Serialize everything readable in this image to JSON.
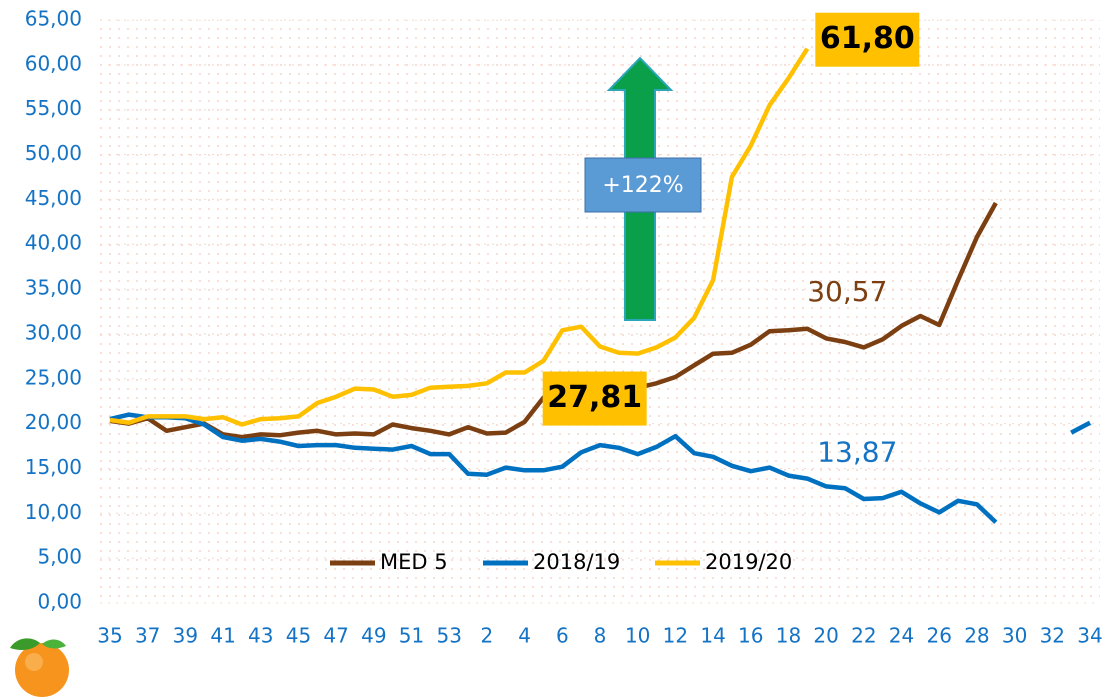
{
  "chart_data": {
    "type": "line",
    "categories": [
      "35",
      null,
      "37",
      null,
      "39",
      null,
      "41",
      null,
      "43",
      null,
      "45",
      null,
      "47",
      null,
      "49",
      null,
      "51",
      null,
      "53",
      null,
      "2",
      null,
      "4",
      null,
      "6",
      null,
      "8",
      null,
      "10",
      null,
      "12",
      null,
      "14",
      null,
      "16",
      null,
      "18",
      null,
      "20",
      null,
      "22",
      null,
      "24",
      null,
      "26",
      null,
      "28",
      null,
      "30",
      null,
      "32",
      null,
      "34"
    ],
    "ylim": [
      0,
      65
    ],
    "yticks": [
      {
        "value": 0,
        "label": "0,00"
      },
      {
        "value": 5,
        "label": "5,00"
      },
      {
        "value": 10,
        "label": "10,00"
      },
      {
        "value": 15,
        "label": "15,00"
      },
      {
        "value": 20,
        "label": "20,00"
      },
      {
        "value": 25,
        "label": "25,00"
      },
      {
        "value": 30,
        "label": "30,00"
      },
      {
        "value": 35,
        "label": "35,00"
      },
      {
        "value": 40,
        "label": "40,00"
      },
      {
        "value": 45,
        "label": "45,00"
      },
      {
        "value": 50,
        "label": "50,00"
      },
      {
        "value": 55,
        "label": "55,00"
      },
      {
        "value": 60,
        "label": "60,00"
      },
      {
        "value": 65,
        "label": "65,00"
      }
    ],
    "grid": true,
    "legend": "bottom",
    "annotations": [
      "+122%"
    ],
    "series": [
      {
        "name": "MED 5",
        "color": "#7b3f12",
        "values": [
          20.3,
          20.0,
          20.6,
          19.2,
          19.6,
          20.0,
          18.8,
          18.5,
          18.8,
          18.7,
          19.0,
          19.2,
          18.8,
          18.9,
          18.8,
          19.9,
          19.5,
          19.2,
          18.8,
          19.6,
          18.9,
          19.0,
          20.2,
          22.9,
          23.0,
          23.1,
          22.9,
          23.5,
          24.0,
          24.5,
          25.2,
          26.5,
          27.8,
          27.9,
          28.8,
          30.3,
          30.4,
          30.57,
          29.5,
          29.1,
          28.5,
          29.4,
          30.9,
          32.0,
          31.0,
          36.0,
          40.8,
          44.6,
          null,
          null,
          null,
          null,
          null
        ],
        "value_labels": [
          null,
          null,
          null,
          null,
          null,
          null,
          null,
          null,
          null,
          null,
          null,
          null,
          null,
          null,
          null,
          null,
          null,
          null,
          null,
          null,
          null,
          null,
          null,
          null,
          null,
          null,
          null,
          null,
          null,
          null,
          null,
          null,
          null,
          null,
          null,
          null,
          null,
          "30,57",
          null,
          null,
          null,
          null,
          null,
          null,
          null,
          null,
          null,
          null,
          null,
          null,
          null,
          null,
          null
        ]
      },
      {
        "name": "2018/19",
        "color": "#0070c0",
        "values": [
          20.5,
          21.0,
          20.7,
          20.7,
          20.6,
          19.9,
          18.5,
          18.1,
          18.3,
          18.0,
          17.5,
          17.6,
          17.6,
          17.3,
          17.2,
          17.1,
          17.5,
          16.6,
          16.6,
          14.4,
          14.3,
          15.1,
          14.8,
          14.8,
          15.2,
          16.8,
          17.6,
          17.3,
          16.6,
          17.4,
          18.6,
          16.7,
          16.3,
          15.3,
          14.7,
          15.1,
          14.2,
          13.87,
          13.0,
          12.8,
          11.6,
          11.7,
          12.4,
          11.1,
          10.1,
          11.4,
          11.0,
          9.0,
          null,
          null,
          null,
          19.0,
          20.1
        ],
        "value_labels": [
          null,
          null,
          null,
          null,
          null,
          null,
          null,
          null,
          null,
          null,
          null,
          null,
          null,
          null,
          null,
          null,
          null,
          null,
          null,
          null,
          null,
          null,
          null,
          null,
          null,
          null,
          null,
          null,
          null,
          null,
          null,
          null,
          null,
          null,
          null,
          null,
          null,
          "13,87",
          null,
          null,
          null,
          null,
          null,
          null,
          null,
          null,
          null,
          null,
          null,
          null,
          null,
          null,
          null
        ]
      },
      {
        "name": "2019/20",
        "color": "#ffc000",
        "values": [
          20.4,
          20.1,
          20.8,
          20.8,
          20.8,
          20.5,
          20.7,
          19.9,
          20.5,
          20.6,
          20.8,
          22.3,
          23.0,
          23.9,
          23.8,
          23.0,
          23.2,
          24.0,
          24.1,
          24.2,
          24.5,
          25.7,
          25.7,
          27.0,
          30.4,
          30.8,
          28.6,
          27.9,
          27.81,
          28.5,
          29.6,
          31.8,
          36.0,
          47.5,
          51.0,
          55.5,
          58.5,
          61.8,
          null,
          null,
          null,
          null,
          null,
          null,
          null,
          null,
          null,
          null,
          null,
          null,
          null,
          null,
          null
        ],
        "value_labels": [
          null,
          null,
          null,
          null,
          null,
          null,
          null,
          null,
          null,
          null,
          null,
          null,
          null,
          null,
          null,
          null,
          null,
          null,
          null,
          null,
          null,
          null,
          null,
          null,
          null,
          null,
          null,
          null,
          "27,81",
          null,
          null,
          null,
          null,
          null,
          null,
          null,
          null,
          "61,80",
          null,
          null,
          null,
          null,
          null,
          null,
          null,
          null,
          null,
          null,
          null,
          null,
          null,
          null,
          null
        ]
      }
    ]
  }
}
